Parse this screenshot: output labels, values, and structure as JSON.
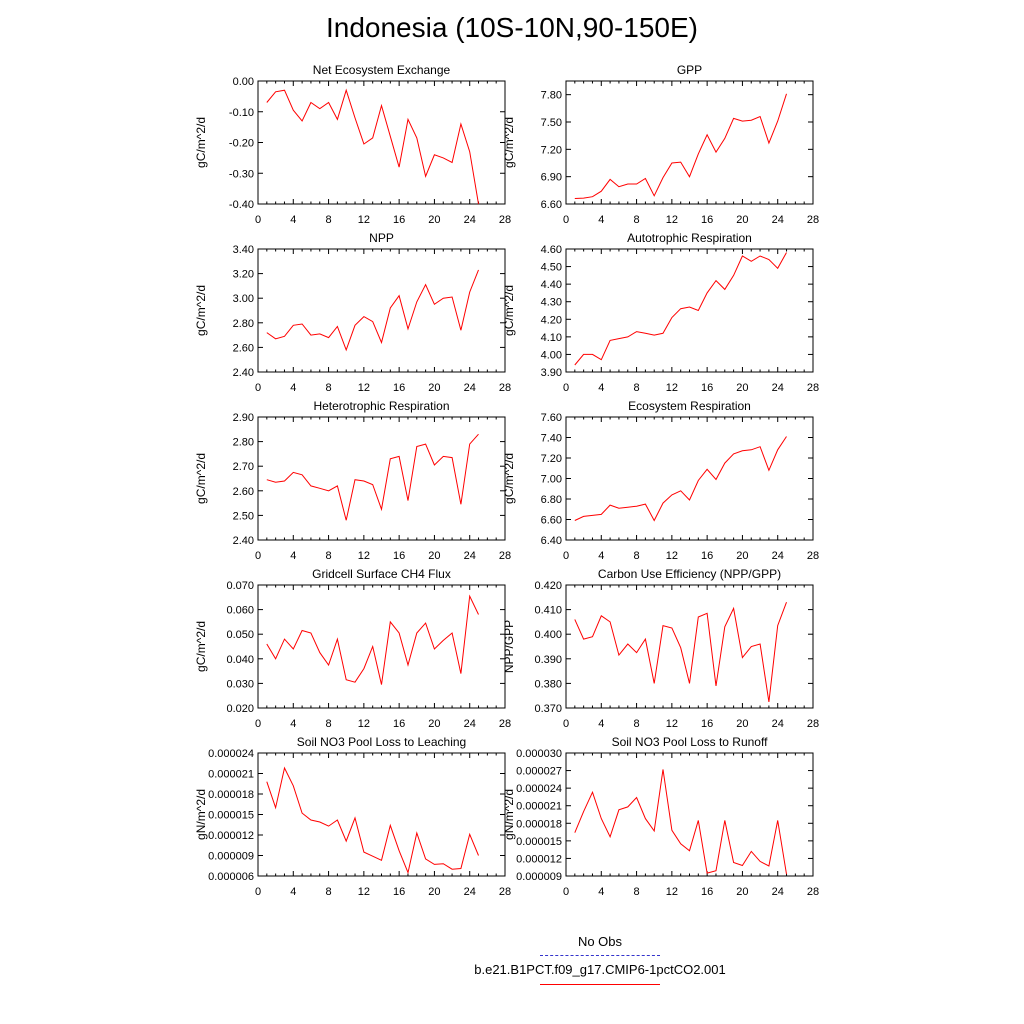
{
  "figure": {
    "title": "Indonesia (10S-10N,90-150E)",
    "legend": [
      {
        "label": "No Obs",
        "color": "#3333cc",
        "style": "dashed"
      },
      {
        "label": "b.e21.B1PCT.f09_g17.CMIP6-1pctCO2.001",
        "color": "#ff0000",
        "style": "solid"
      }
    ]
  },
  "chart_data": [
    {
      "type": "line",
      "title": "Net Ecosystem Exchange",
      "ylabel": "gC/m^2/d",
      "xlim": [
        0,
        28
      ],
      "xticks": [
        "0",
        "4",
        "8",
        "12",
        "16",
        "20",
        "24",
        "28"
      ],
      "ylim": [
        -0.4,
        0.0
      ],
      "yticks": [
        "0.00",
        "-0.10",
        "-0.20",
        "-0.30",
        "-0.40"
      ],
      "ytick_values": [
        0,
        -0.1,
        -0.2,
        -0.3,
        -0.4
      ],
      "series": [
        {
          "color": "#ff0000",
          "x": [
            1,
            2,
            3,
            4,
            5,
            6,
            7,
            8,
            9,
            10,
            11,
            12,
            13,
            14,
            15,
            16,
            17,
            18,
            19,
            20,
            21,
            22,
            23,
            24,
            25
          ],
          "y": [
            -0.07,
            -0.035,
            -0.03,
            -0.095,
            -0.13,
            -0.07,
            -0.09,
            -0.07,
            -0.125,
            -0.03,
            -0.12,
            -0.205,
            -0.185,
            -0.08,
            -0.18,
            -0.28,
            -0.125,
            -0.185,
            -0.31,
            -0.24,
            -0.25,
            -0.265,
            -0.14,
            -0.23,
            -0.4
          ]
        }
      ]
    },
    {
      "type": "line",
      "title": "GPP",
      "ylabel": "gC/m^2/d",
      "xlim": [
        0,
        28
      ],
      "xticks": [
        "0",
        "4",
        "8",
        "12",
        "16",
        "20",
        "24",
        "28"
      ],
      "ylim": [
        6.6,
        7.95
      ],
      "yticks": [
        "7.80",
        "7.50",
        "7.20",
        "6.90",
        "6.60"
      ],
      "ytick_values": [
        7.8,
        7.5,
        7.2,
        6.9,
        6.6
      ],
      "series": [
        {
          "color": "#ff0000",
          "x": [
            1,
            2,
            3,
            4,
            5,
            6,
            7,
            8,
            9,
            10,
            11,
            12,
            13,
            14,
            15,
            16,
            17,
            18,
            19,
            20,
            21,
            22,
            23,
            24,
            25
          ],
          "y": [
            6.66,
            6.665,
            6.68,
            6.74,
            6.87,
            6.79,
            6.82,
            6.82,
            6.88,
            6.69,
            6.89,
            7.05,
            7.06,
            6.9,
            7.15,
            7.36,
            7.17,
            7.32,
            7.54,
            7.51,
            7.52,
            7.56,
            7.27,
            7.51,
            7.81
          ]
        }
      ]
    },
    {
      "type": "line",
      "title": "NPP",
      "ylabel": "gC/m^2/d",
      "xlim": [
        0,
        28
      ],
      "xticks": [
        "0",
        "4",
        "8",
        "12",
        "16",
        "20",
        "24",
        "28"
      ],
      "ylim": [
        2.4,
        3.4
      ],
      "yticks": [
        "3.40",
        "3.20",
        "3.00",
        "2.80",
        "2.60",
        "2.40"
      ],
      "ytick_values": [
        3.4,
        3.2,
        3.0,
        2.8,
        2.6,
        2.4
      ],
      "series": [
        {
          "color": "#ff0000",
          "x": [
            1,
            2,
            3,
            4,
            5,
            6,
            7,
            8,
            9,
            10,
            11,
            12,
            13,
            14,
            15,
            16,
            17,
            18,
            19,
            20,
            21,
            22,
            23,
            24,
            25
          ],
          "y": [
            2.72,
            2.67,
            2.69,
            2.78,
            2.79,
            2.7,
            2.71,
            2.68,
            2.77,
            2.58,
            2.78,
            2.85,
            2.81,
            2.64,
            2.92,
            3.02,
            2.75,
            2.97,
            3.11,
            2.95,
            3.0,
            3.01,
            2.74,
            3.05,
            3.23
          ]
        }
      ]
    },
    {
      "type": "line",
      "title": "Autotrophic Respiration",
      "ylabel": "gC/m^2/d",
      "xlim": [
        0,
        28
      ],
      "xticks": [
        "0",
        "4",
        "8",
        "12",
        "16",
        "20",
        "24",
        "28"
      ],
      "ylim": [
        3.9,
        4.6
      ],
      "yticks": [
        "4.60",
        "4.50",
        "4.40",
        "4.30",
        "4.20",
        "4.10",
        "4.00",
        "3.90"
      ],
      "ytick_values": [
        4.6,
        4.5,
        4.4,
        4.3,
        4.2,
        4.1,
        4.0,
        3.9
      ],
      "series": [
        {
          "color": "#ff0000",
          "x": [
            1,
            2,
            3,
            4,
            5,
            6,
            7,
            8,
            9,
            10,
            11,
            12,
            13,
            14,
            15,
            16,
            17,
            18,
            19,
            20,
            21,
            22,
            23,
            24,
            25
          ],
          "y": [
            3.94,
            4.0,
            4.0,
            3.97,
            4.08,
            4.09,
            4.1,
            4.13,
            4.12,
            4.11,
            4.12,
            4.21,
            4.26,
            4.27,
            4.25,
            4.35,
            4.42,
            4.37,
            4.45,
            4.56,
            4.53,
            4.56,
            4.54,
            4.49,
            4.58
          ]
        }
      ]
    },
    {
      "type": "line",
      "title": "Heterotrophic Respiration",
      "ylabel": "gC/m^2/d",
      "xlim": [
        0,
        28
      ],
      "xticks": [
        "0",
        "4",
        "8",
        "12",
        "16",
        "20",
        "24",
        "28"
      ],
      "ylim": [
        2.4,
        2.9
      ],
      "yticks": [
        "2.90",
        "2.80",
        "2.70",
        "2.60",
        "2.50",
        "2.40"
      ],
      "ytick_values": [
        2.9,
        2.8,
        2.7,
        2.6,
        2.5,
        2.4
      ],
      "series": [
        {
          "color": "#ff0000",
          "x": [
            1,
            2,
            3,
            4,
            5,
            6,
            7,
            8,
            9,
            10,
            11,
            12,
            13,
            14,
            15,
            16,
            17,
            18,
            19,
            20,
            21,
            22,
            23,
            24,
            25
          ],
          "y": [
            2.645,
            2.635,
            2.64,
            2.675,
            2.665,
            2.62,
            2.61,
            2.6,
            2.62,
            2.48,
            2.645,
            2.64,
            2.625,
            2.525,
            2.73,
            2.74,
            2.56,
            2.78,
            2.79,
            2.705,
            2.74,
            2.735,
            2.545,
            2.79,
            2.83
          ]
        }
      ]
    },
    {
      "type": "line",
      "title": "Ecosystem Respiration",
      "ylabel": "gC/m^2/d",
      "xlim": [
        0,
        28
      ],
      "xticks": [
        "0",
        "4",
        "8",
        "12",
        "16",
        "20",
        "24",
        "28"
      ],
      "ylim": [
        6.4,
        7.6
      ],
      "yticks": [
        "7.60",
        "7.40",
        "7.20",
        "7.00",
        "6.80",
        "6.60",
        "6.40"
      ],
      "ytick_values": [
        7.6,
        7.4,
        7.2,
        7.0,
        6.8,
        6.6,
        6.4
      ],
      "series": [
        {
          "color": "#ff0000",
          "x": [
            1,
            2,
            3,
            4,
            5,
            6,
            7,
            8,
            9,
            10,
            11,
            12,
            13,
            14,
            15,
            16,
            17,
            18,
            19,
            20,
            21,
            22,
            23,
            24,
            25
          ],
          "y": [
            6.59,
            6.63,
            6.64,
            6.65,
            6.74,
            6.71,
            6.72,
            6.73,
            6.75,
            6.59,
            6.76,
            6.84,
            6.88,
            6.79,
            6.98,
            7.09,
            6.99,
            7.15,
            7.24,
            7.27,
            7.28,
            7.31,
            7.08,
            7.28,
            7.41
          ]
        }
      ]
    },
    {
      "type": "line",
      "title": "Gridcell Surface CH4 Flux",
      "ylabel": "gC/m^2/d",
      "xlim": [
        0,
        28
      ],
      "xticks": [
        "0",
        "4",
        "8",
        "12",
        "16",
        "20",
        "24",
        "28"
      ],
      "ylim": [
        0.02,
        0.07
      ],
      "yticks": [
        "0.070",
        "0.060",
        "0.050",
        "0.040",
        "0.030",
        "0.020"
      ],
      "ytick_values": [
        0.07,
        0.06,
        0.05,
        0.04,
        0.03,
        0.02
      ],
      "series": [
        {
          "color": "#ff0000",
          "x": [
            1,
            2,
            3,
            4,
            5,
            6,
            7,
            8,
            9,
            10,
            11,
            12,
            13,
            14,
            15,
            16,
            17,
            18,
            19,
            20,
            21,
            22,
            23,
            24,
            25
          ],
          "y": [
            0.046,
            0.04,
            0.048,
            0.044,
            0.0515,
            0.0505,
            0.0425,
            0.0375,
            0.048,
            0.0315,
            0.0305,
            0.036,
            0.045,
            0.0295,
            0.055,
            0.0505,
            0.0375,
            0.0505,
            0.0545,
            0.044,
            0.0475,
            0.0505,
            0.034,
            0.0655,
            0.058
          ]
        }
      ]
    },
    {
      "type": "line",
      "title": "Carbon Use Efficiency (NPP/GPP)",
      "ylabel": "NPP/GPP",
      "xlim": [
        0,
        28
      ],
      "xticks": [
        "0",
        "4",
        "8",
        "12",
        "16",
        "20",
        "24",
        "28"
      ],
      "ylim": [
        0.37,
        0.42
      ],
      "yticks": [
        "0.420",
        "0.410",
        "0.400",
        "0.390",
        "0.380",
        "0.370"
      ],
      "ytick_values": [
        0.42,
        0.41,
        0.4,
        0.39,
        0.38,
        0.37
      ],
      "series": [
        {
          "color": "#ff0000",
          "x": [
            1,
            2,
            3,
            4,
            5,
            6,
            7,
            8,
            9,
            10,
            11,
            12,
            13,
            14,
            15,
            16,
            17,
            18,
            19,
            20,
            21,
            22,
            23,
            24,
            25
          ],
          "y": [
            0.406,
            0.398,
            0.399,
            0.4075,
            0.405,
            0.3915,
            0.396,
            0.3925,
            0.398,
            0.38,
            0.4035,
            0.4025,
            0.3945,
            0.38,
            0.407,
            0.4085,
            0.379,
            0.403,
            0.4105,
            0.3905,
            0.395,
            0.396,
            0.3725,
            0.4035,
            0.413
          ]
        }
      ]
    },
    {
      "type": "line",
      "title": "Soil NO3 Pool Loss to Leaching",
      "ylabel": "gN/m^2/d",
      "xlim": [
        0,
        28
      ],
      "xticks": [
        "0",
        "4",
        "8",
        "12",
        "16",
        "20",
        "24",
        "28"
      ],
      "ylim": [
        6e-06,
        2.4e-05
      ],
      "yticks": [
        "0.000024",
        "0.000021",
        "0.000018",
        "0.000015",
        "0.000012",
        "0.000009",
        "0.000006"
      ],
      "ytick_values": [
        2.4e-05,
        2.1e-05,
        1.8e-05,
        1.5e-05,
        1.2e-05,
        9e-06,
        6e-06
      ],
      "series": [
        {
          "color": "#ff0000",
          "x": [
            1,
            2,
            3,
            4,
            5,
            6,
            7,
            8,
            9,
            10,
            11,
            12,
            13,
            14,
            15,
            16,
            17,
            18,
            19,
            20,
            21,
            22,
            23,
            24,
            25
          ],
          "y": [
            1.98e-05,
            1.6e-05,
            2.18e-05,
            1.92e-05,
            1.52e-05,
            1.42e-05,
            1.39e-05,
            1.33e-05,
            1.42e-05,
            1.11e-05,
            1.45e-05,
            9.5e-06,
            8.9e-06,
            8.3e-06,
            1.34e-05,
            9.7e-06,
            6.5e-06,
            1.23e-05,
            8.5e-06,
            7.7e-06,
            7.8e-06,
            7e-06,
            7.1e-06,
            1.21e-05,
            9e-06
          ]
        }
      ]
    },
    {
      "type": "line",
      "title": "Soil NO3 Pool Loss to Runoff",
      "ylabel": "gN/m^2/d",
      "xlim": [
        0,
        28
      ],
      "xticks": [
        "0",
        "4",
        "8",
        "12",
        "16",
        "20",
        "24",
        "28"
      ],
      "ylim": [
        9e-06,
        3e-05
      ],
      "yticks": [
        "0.000030",
        "0.000027",
        "0.000024",
        "0.000021",
        "0.000018",
        "0.000015",
        "0.000012",
        "0.000009"
      ],
      "ytick_values": [
        3e-05,
        2.7e-05,
        2.4e-05,
        2.1e-05,
        1.8e-05,
        1.5e-05,
        1.2e-05,
        9e-06
      ],
      "series": [
        {
          "color": "#ff0000",
          "x": [
            1,
            2,
            3,
            4,
            5,
            6,
            7,
            8,
            9,
            10,
            11,
            12,
            13,
            14,
            15,
            16,
            17,
            18,
            19,
            20,
            21,
            22,
            23,
            24,
            25
          ],
          "y": [
            1.64e-05,
            2e-05,
            2.33e-05,
            1.88e-05,
            1.57e-05,
            2.03e-05,
            2.08e-05,
            2.24e-05,
            1.88e-05,
            1.67e-05,
            2.72e-05,
            1.68e-05,
            1.45e-05,
            1.33e-05,
            1.85e-05,
            9.5e-06,
            9.9e-06,
            1.85e-05,
            1.13e-05,
            1.08e-05,
            1.32e-05,
            1.15e-05,
            1.07e-05,
            1.85e-05,
            9.3e-06
          ]
        }
      ]
    }
  ]
}
